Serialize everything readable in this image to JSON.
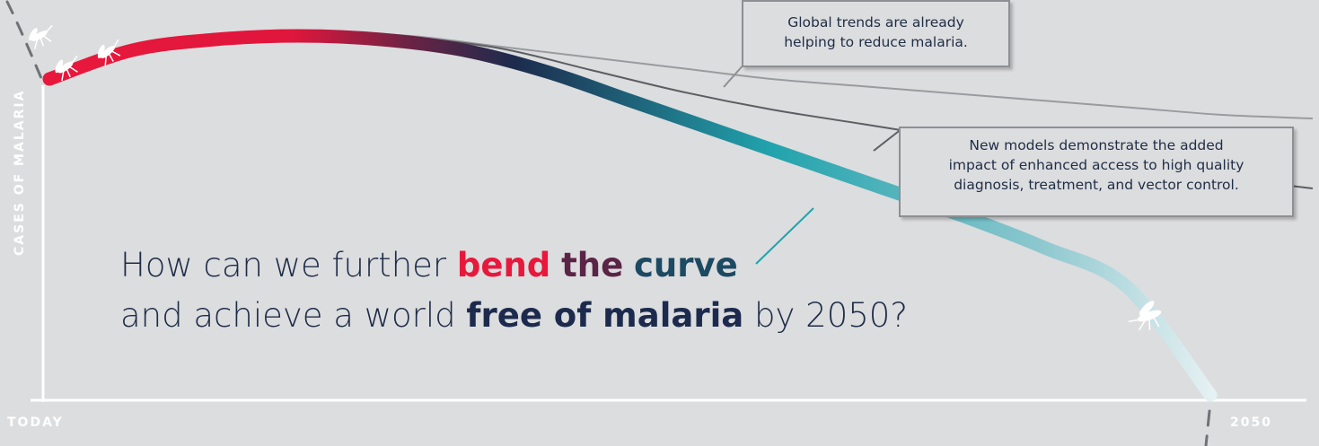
{
  "chart_data": {
    "type": "line",
    "title": "",
    "xlabel": "",
    "ylabel": "CASES OF MALARIA",
    "x_tick_labels": [
      "TODAY",
      "2050"
    ],
    "grid": false,
    "legend": "none",
    "series": [
      {
        "values": [
          88,
          96,
          99,
          100,
          99,
          96,
          90,
          82,
          74,
          66,
          58,
          50,
          41,
          30,
          0
        ]
      },
      {
        "values": [
          88,
          96,
          99,
          100,
          99,
          96,
          93,
          90,
          87,
          85,
          83,
          81,
          79,
          77,
          76
        ]
      },
      {
        "values": [
          88,
          96,
          99,
          100,
          99,
          96,
          90,
          84,
          79,
          75,
          71,
          67,
          63,
          60,
          57
        ]
      }
    ],
    "annotations": [
      {
        "text": "Global trends are already helping to reduce malaria."
      },
      {
        "text": "New models demonstrate the added impact of enhanced access to high quality diagnosis, treatment, and vector control."
      }
    ],
    "colors": {
      "curve_start": "#e8183c",
      "curve_mid": "#1c2b4d",
      "curve_teal": "#21a3ad",
      "curve_end": "#dcebee",
      "trend_lines": "#8e8f93",
      "background": "#dcdddf",
      "axis": "#ffffff"
    }
  },
  "callouts": [
    {
      "lines": [
        "Global trends are already",
        "helping to reduce malaria."
      ]
    },
    {
      "lines": [
        "New models demonstrate the added",
        "impact of enhanced access to high quality",
        "diagnosis, treatment, and vector control."
      ]
    }
  ],
  "headline": {
    "line1_prefix": "How can we further ",
    "word_bend": "bend",
    "word_the": "the",
    "word_curve": "curve",
    "line2_prefix": "and achieve a world ",
    "emphasis": "free of malaria",
    "line2_suffix": " by 2050?"
  },
  "axes": {
    "x_start": "TODAY",
    "x_end": "2050",
    "y_label": "CASES OF MALARIA"
  },
  "icons": [
    "mosquito-icon",
    "mosquito-icon",
    "mosquito-icon",
    "mosquito-icon"
  ]
}
